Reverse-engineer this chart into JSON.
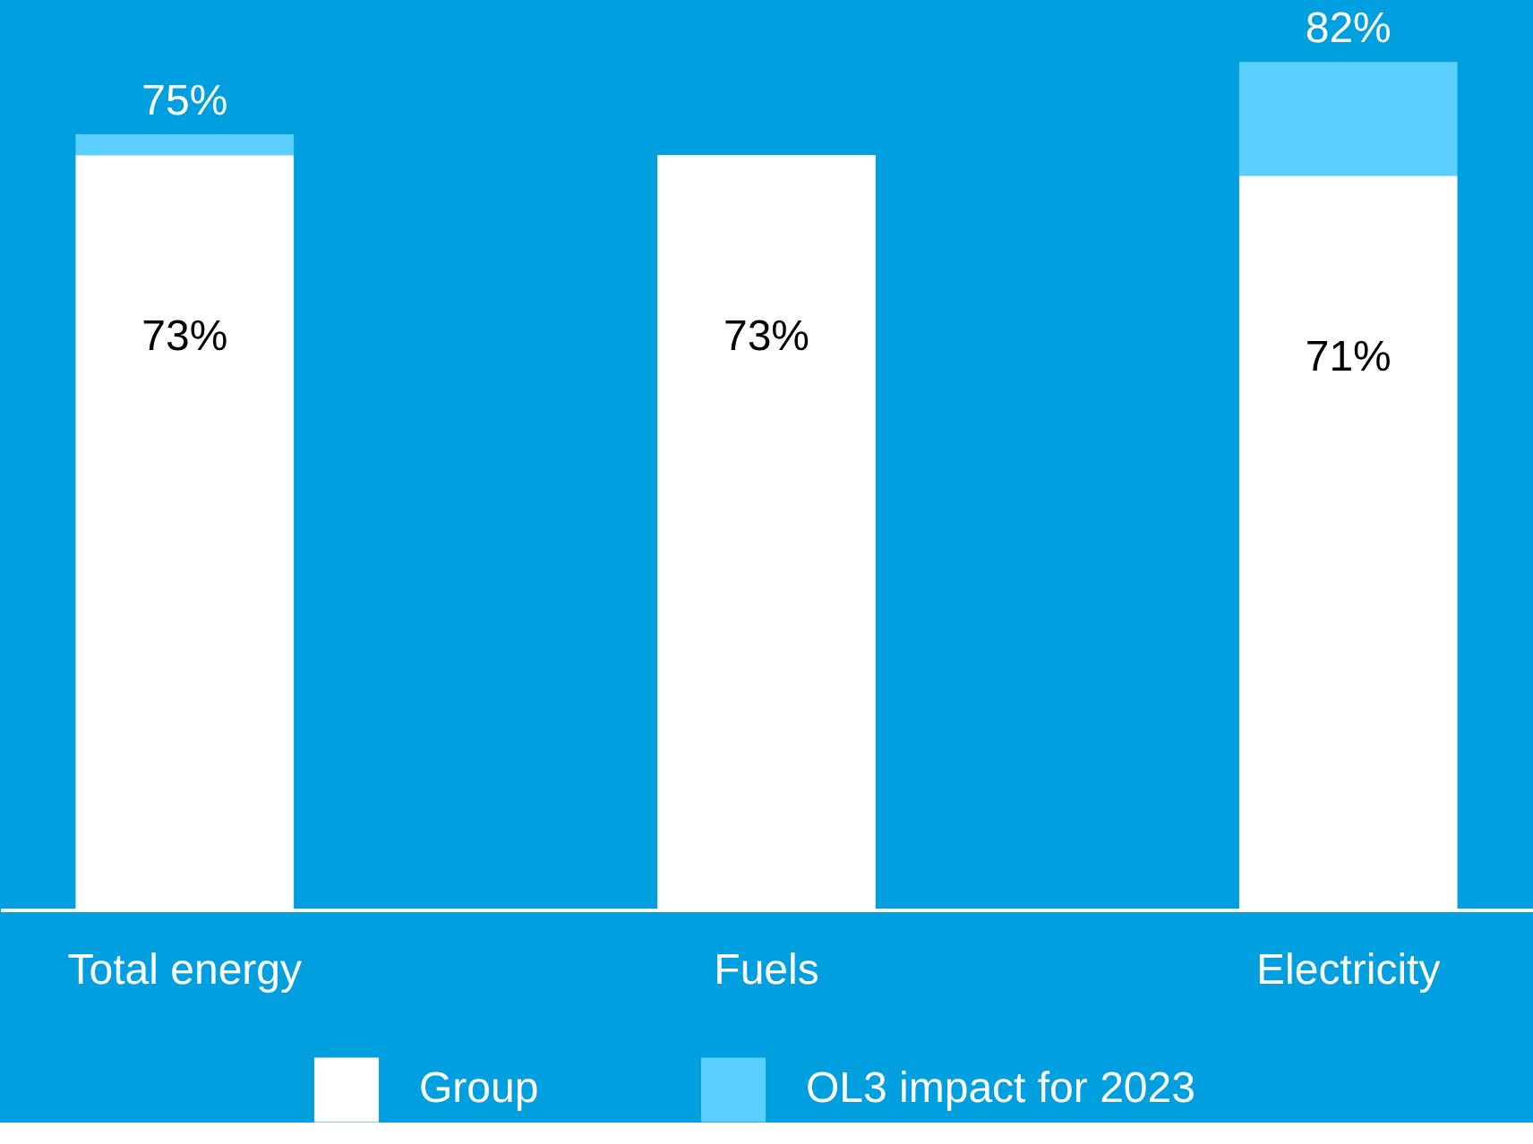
{
  "chart_data": {
    "type": "bar",
    "stacked": true,
    "categories": [
      "Total energy",
      "Fuels",
      "Electricity"
    ],
    "series": [
      {
        "name": "Group",
        "color": "#ffffff",
        "values": [
          73,
          73,
          71
        ],
        "value_labels": [
          "73%",
          "73%",
          "71%"
        ]
      },
      {
        "name": "OL3 impact for 2023",
        "color": "#5bcfff",
        "values": [
          2,
          null,
          11
        ]
      }
    ],
    "totals": [
      "75%",
      null,
      "82%"
    ],
    "ylim": [
      0,
      88
    ],
    "legend": "bottom",
    "grid": false,
    "tick_labels": "x"
  }
}
